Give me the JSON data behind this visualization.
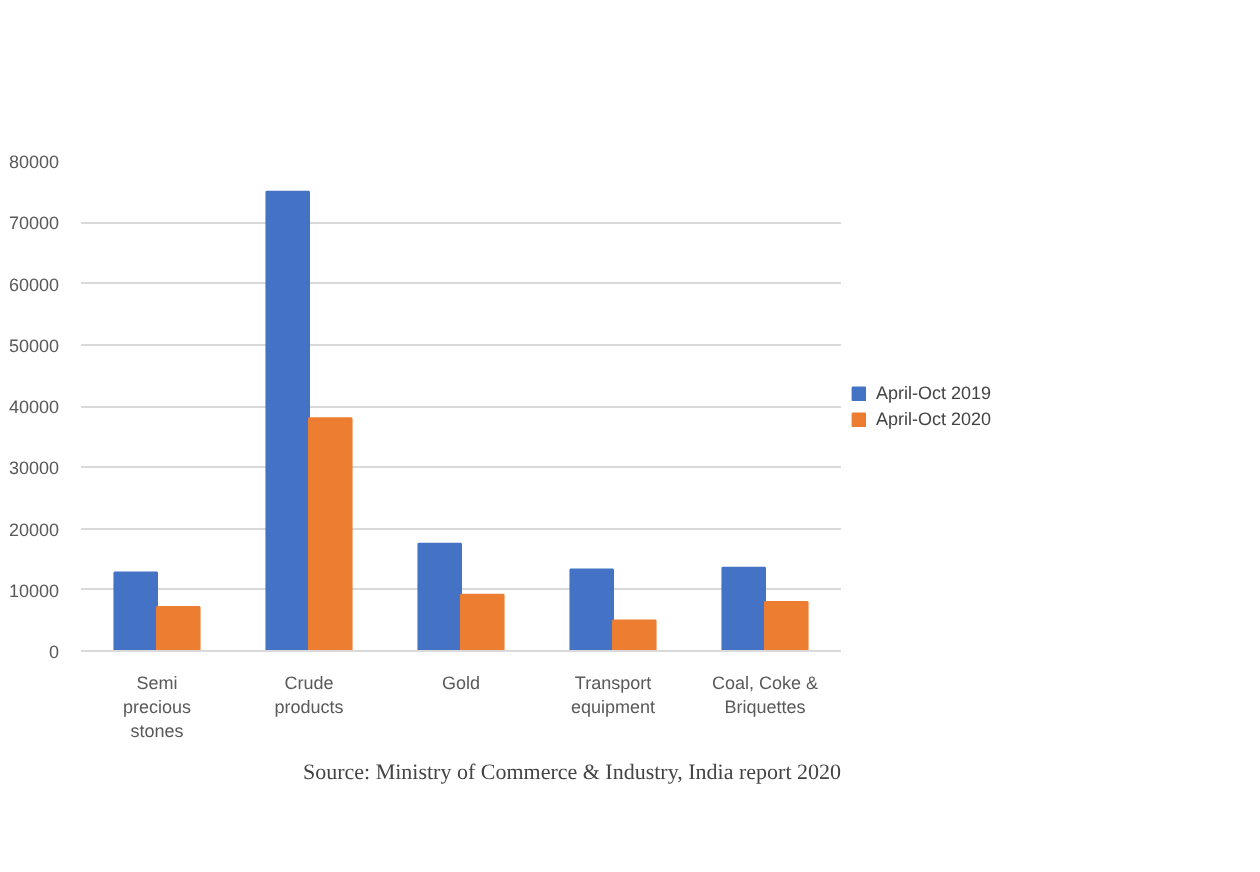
{
  "chart_data": {
    "type": "bar",
    "categories": [
      "Semi\nprecious\nstones",
      "Crude\nproducts",
      "Gold",
      "Transport\nequipment",
      "Coal, Coke &\nBriquettes"
    ],
    "series": [
      {
        "name": "April-Oct 2019",
        "color": "#4472c4",
        "values": [
          12800,
          75000,
          17500,
          13300,
          13600
        ]
      },
      {
        "name": "April-Oct 2020",
        "color": "#ed7d31",
        "values": [
          7200,
          38000,
          9200,
          5000,
          8000
        ]
      }
    ],
    "ylim": [
      0,
      80000
    ],
    "yticks": [
      0,
      10000,
      20000,
      30000,
      40000,
      50000,
      60000,
      70000,
      80000
    ],
    "grid": "y",
    "legend": "right",
    "annotations": [
      "Source: Ministry of Commerce & Industry, India report 2020"
    ]
  }
}
